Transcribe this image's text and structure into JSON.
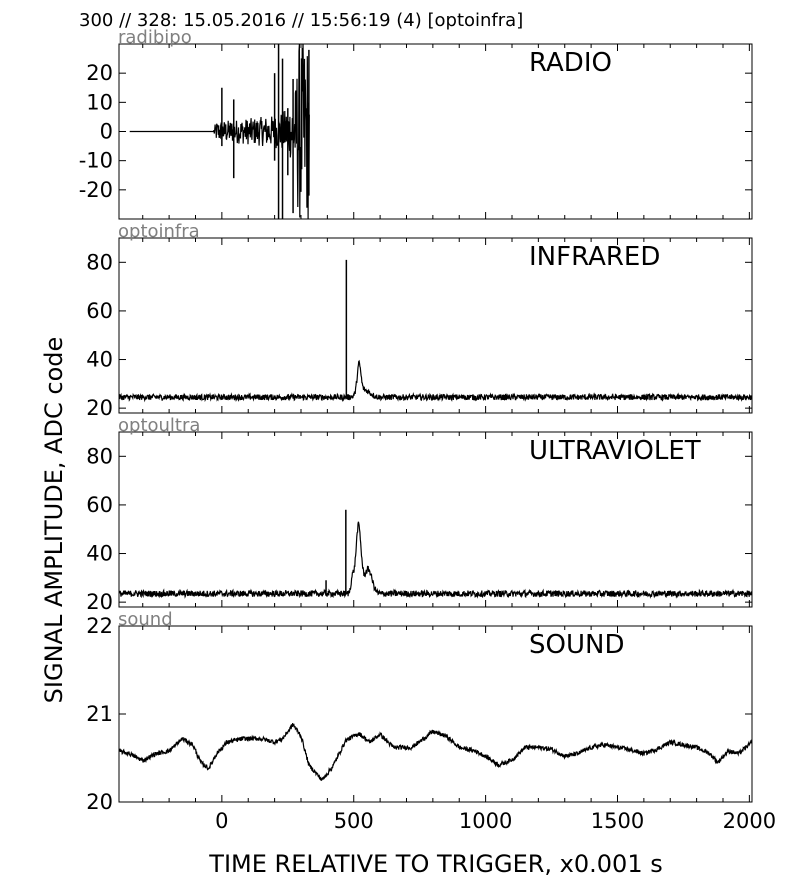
{
  "header": {
    "line": "300 // 328:   15.05.2016 // 15:56:19 (4)  [optoinfra]"
  },
  "chart_data": [
    {
      "type": "line",
      "channel_label": "radibipo",
      "panel_label": "RADIO",
      "xlim": [
        -390,
        2010
      ],
      "ylim": [
        -30,
        30
      ],
      "y_ticks": [
        20,
        10,
        0,
        -10,
        -20
      ],
      "series": [
        {
          "baseline": 0,
          "noise": 1.5,
          "flat_until": -30,
          "envelope": [
            {
              "x": -350,
              "amp": 0
            },
            {
              "x": -30,
              "amp": 0
            },
            {
              "x": -20,
              "amp": 2
            },
            {
              "x": 100,
              "amp": 3
            },
            {
              "x": 200,
              "amp": 4
            },
            {
              "x": 240,
              "amp": 6
            },
            {
              "x": 260,
              "amp": 8
            },
            {
              "x": 280,
              "amp": 14
            },
            {
              "x": 290,
              "amp": 30
            },
            {
              "x": 330,
              "amp": 30
            },
            {
              "x": 332,
              "amp": 0
            }
          ],
          "spikes": [
            {
              "x": 0,
              "y1": -5,
              "y2": 15
            },
            {
              "x": 45,
              "y1": -16,
              "y2": 11
            },
            {
              "x": 200,
              "y1": -10,
              "y2": 20
            },
            {
              "x": 215,
              "y1": -30,
              "y2": 30
            },
            {
              "x": 230,
              "y1": -30,
              "y2": 25
            },
            {
              "x": 250,
              "y1": -15,
              "y2": 8
            },
            {
              "x": 270,
              "y1": -28,
              "y2": 18
            },
            {
              "x": 330,
              "y1": -22,
              "y2": 28
            }
          ]
        }
      ]
    },
    {
      "type": "line",
      "channel_label": "optoinfra",
      "panel_label": "INFRARED",
      "xlim": [
        -390,
        2010
      ],
      "ylim": [
        18,
        90
      ],
      "y_ticks": [
        80,
        60,
        40,
        20
      ],
      "series": [
        {
          "baseline": 24.5,
          "noise": 1.2,
          "bumps": [
            {
              "x": 520,
              "height": 12,
              "width": 10
            },
            {
              "x": 540,
              "height": 3,
              "width": 30
            }
          ],
          "spikes": [
            {
              "x": 472,
              "y1": 24,
              "y2": 81
            }
          ]
        }
      ]
    },
    {
      "type": "line",
      "channel_label": "optoultra",
      "panel_label": "ULTRAVIOLET",
      "xlim": [
        -390,
        2010
      ],
      "ylim": [
        18,
        90
      ],
      "y_ticks": [
        80,
        60,
        40,
        20
      ],
      "series": [
        {
          "baseline": 23.5,
          "noise": 1.3,
          "bumps": [
            {
              "x": 518,
              "height": 28,
              "width": 14
            },
            {
              "x": 555,
              "height": 10,
              "width": 20
            },
            {
              "x": 495,
              "height": 6,
              "width": 8
            }
          ],
          "spikes": [
            {
              "x": 470,
              "y1": 23,
              "y2": 58
            },
            {
              "x": 395,
              "y1": 23,
              "y2": 29
            }
          ]
        }
      ]
    },
    {
      "type": "line",
      "channel_label": "sound",
      "panel_label": "SOUND",
      "xlim": [
        -390,
        2010
      ],
      "ylim": [
        20,
        22
      ],
      "y_ticks": [
        22,
        21,
        20
      ],
      "series": [
        {
          "noise": 0.025,
          "points": [
            [
              -390,
              20.58
            ],
            [
              -350,
              20.55
            ],
            [
              -300,
              20.47
            ],
            [
              -250,
              20.55
            ],
            [
              -200,
              20.58
            ],
            [
              -150,
              20.72
            ],
            [
              -110,
              20.65
            ],
            [
              -80,
              20.45
            ],
            [
              -50,
              20.38
            ],
            [
              -20,
              20.55
            ],
            [
              20,
              20.68
            ],
            [
              80,
              20.72
            ],
            [
              150,
              20.72
            ],
            [
              200,
              20.68
            ],
            [
              230,
              20.72
            ],
            [
              270,
              20.88
            ],
            [
              300,
              20.75
            ],
            [
              330,
              20.42
            ],
            [
              380,
              20.25
            ],
            [
              420,
              20.4
            ],
            [
              470,
              20.7
            ],
            [
              520,
              20.78
            ],
            [
              560,
              20.68
            ],
            [
              600,
              20.77
            ],
            [
              650,
              20.62
            ],
            [
              720,
              20.62
            ],
            [
              800,
              20.8
            ],
            [
              850,
              20.75
            ],
            [
              900,
              20.62
            ],
            [
              960,
              20.58
            ],
            [
              1000,
              20.52
            ],
            [
              1050,
              20.42
            ],
            [
              1100,
              20.48
            ],
            [
              1150,
              20.62
            ],
            [
              1200,
              20.62
            ],
            [
              1250,
              20.6
            ],
            [
              1300,
              20.52
            ],
            [
              1350,
              20.55
            ],
            [
              1400,
              20.62
            ],
            [
              1450,
              20.65
            ],
            [
              1500,
              20.62
            ],
            [
              1540,
              20.6
            ],
            [
              1600,
              20.55
            ],
            [
              1650,
              20.6
            ],
            [
              1700,
              20.68
            ],
            [
              1750,
              20.65
            ],
            [
              1800,
              20.62
            ],
            [
              1850,
              20.55
            ],
            [
              1880,
              20.45
            ],
            [
              1920,
              20.58
            ],
            [
              1960,
              20.55
            ],
            [
              2010,
              20.68
            ]
          ]
        }
      ]
    }
  ],
  "x_axis": {
    "ticks": [
      0,
      500,
      1000,
      1500,
      2000
    ],
    "title": "TIME RELATIVE TO TRIGGER,   x0.001 s"
  },
  "y_axis": {
    "title": "SIGNAL AMPLITUDE,  ADC code"
  }
}
